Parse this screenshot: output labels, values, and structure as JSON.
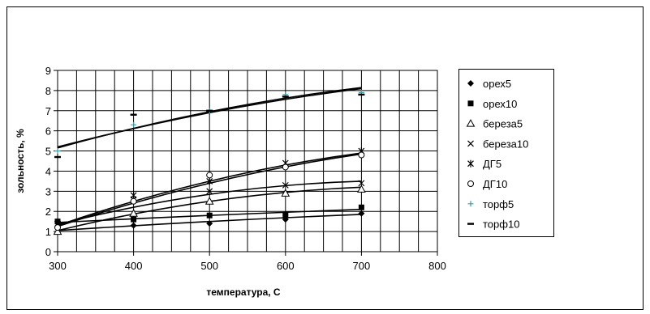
{
  "chart_data": {
    "type": "scatter",
    "title": "",
    "xlabel": "температура, С",
    "ylabel": "зольность, %",
    "xlim": [
      300,
      800
    ],
    "ylim": [
      0,
      9
    ],
    "x_ticks": [
      300,
      400,
      500,
      600,
      700,
      800
    ],
    "y_ticks": [
      0,
      1,
      2,
      3,
      4,
      5,
      6,
      7,
      8,
      9
    ],
    "grid": true,
    "legend_position": "right",
    "series": [
      {
        "name": "орех5",
        "marker": "diamond",
        "x": [
          300,
          400,
          500,
          600,
          700
        ],
        "y": [
          1.5,
          1.3,
          1.4,
          1.6,
          1.9
        ],
        "trend": [
          1.05,
          1.5,
          1.85
        ]
      },
      {
        "name": "орех10",
        "marker": "square",
        "x": [
          300,
          400,
          500,
          600,
          700
        ],
        "y": [
          1.5,
          1.6,
          1.8,
          1.8,
          2.2
        ],
        "trend": [
          1.45,
          1.8,
          2.1
        ]
      },
      {
        "name": "береза5",
        "marker": "triangle",
        "x": [
          300,
          400,
          500,
          600,
          700
        ],
        "y": [
          1.0,
          1.9,
          2.5,
          2.9,
          3.1
        ],
        "trend": [
          1.05,
          2.5,
          3.2
        ]
      },
      {
        "name": "береза10",
        "marker": "x",
        "x": [
          300,
          400,
          500,
          600,
          700
        ],
        "y": [
          1.4,
          2.6,
          3.0,
          3.3,
          3.4
        ],
        "trend": [
          1.35,
          2.85,
          3.5
        ]
      },
      {
        "name": "ДГ5",
        "marker": "star",
        "x": [
          300,
          400,
          500,
          600,
          700
        ],
        "y": [
          1.3,
          2.8,
          3.5,
          4.4,
          5.0
        ],
        "trend": [
          1.3,
          3.5,
          4.9
        ]
      },
      {
        "name": "ДГ10",
        "marker": "circle",
        "x": [
          300,
          400,
          500,
          600,
          700
        ],
        "y": [
          1.2,
          2.5,
          3.8,
          4.2,
          4.8
        ],
        "trend": [
          1.25,
          3.4,
          4.85
        ]
      },
      {
        "name": "торф5",
        "marker": "plus",
        "x": [
          300,
          400,
          500,
          600,
          700
        ],
        "y": [
          5.0,
          6.3,
          7.0,
          7.8,
          7.9
        ],
        "trend": [
          5.2,
          6.9,
          8.1
        ]
      },
      {
        "name": "торф10",
        "marker": "dash",
        "x": [
          300,
          400,
          500,
          600,
          700
        ],
        "y": [
          4.7,
          6.8,
          7.0,
          7.7,
          7.8
        ],
        "trend": [
          5.15,
          6.95,
          8.15
        ]
      }
    ]
  },
  "colors": {
    "marker_default": "#000000",
    "marker_torf5": "#3a9aa8",
    "trend": "#000000",
    "grid": "#000000",
    "border": "#000000"
  }
}
